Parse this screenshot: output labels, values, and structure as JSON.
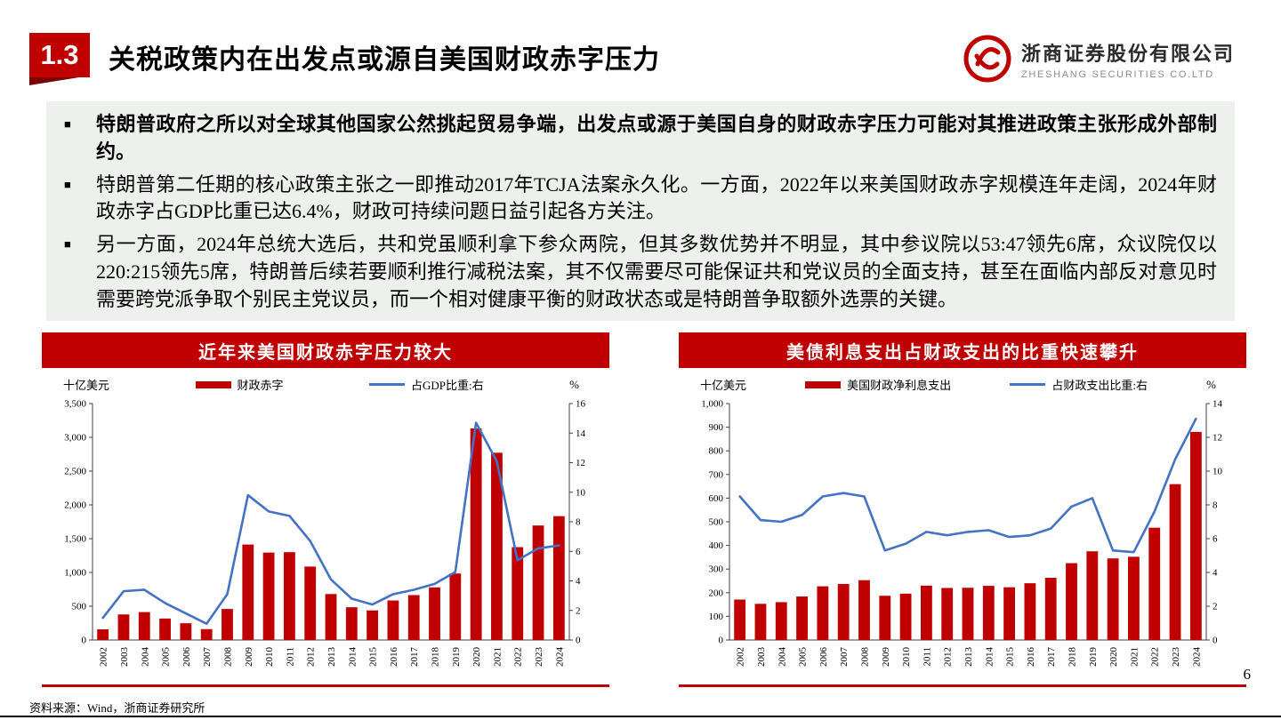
{
  "slide": {
    "section_number": "1.3",
    "title": "关税政策内在出发点或源自美国财政赤字压力",
    "bullet_marker": "■",
    "source_note": "资料来源：Wind，浙商证券研究所",
    "page_number": "6"
  },
  "logo": {
    "company_cn": "浙商证券股份有限公司",
    "company_en": "ZHESHANG SECURITIES CO.LTD"
  },
  "bullets": [
    {
      "text": "特朗普政府之所以对全球其他国家公然挑起贸易争端，出发点或源于美国自身的财政赤字压力可能对其推进政策主张形成外部制约。"
    },
    {
      "text": "特朗普第二任期的核心政策主张之一即推动2017年TCJA法案永久化。一方面，2022年以来美国财政赤字规模连年走阔，2024年财政赤字占GDP比重已达6.4%，财政可持续问题日益引起各方关注。"
    },
    {
      "text": "另一方面，2024年总统大选后，共和党虽顺利拿下参众两院，但其多数优势并不明显，其中参议院以53:47领先6席，众议院仅以220:215领先5席，特朗普后续若要顺利推行减税法案，其不仅需要尽可能保证共和党议员的全面支持，甚至在面临内部反对意见时需要跨党派争取个别民主党议员，而一个相对健康平衡的财政状态或是特朗普争取额外选票的关键。"
    }
  ],
  "chart_data": [
    {
      "type": "bar",
      "subtype": "bar+line-dual-axis",
      "title": "近年来美国财政赤字压力较大",
      "unit_left": "十亿美元",
      "unit_right": "%",
      "grid": false,
      "legend_position": "top",
      "categories": [
        "2002",
        "2003",
        "2004",
        "2005",
        "2006",
        "2007",
        "2008",
        "2009",
        "2010",
        "2011",
        "2012",
        "2013",
        "2014",
        "2015",
        "2016",
        "2017",
        "2018",
        "2019",
        "2020",
        "2021",
        "2022",
        "2023",
        "2024"
      ],
      "bar_series": {
        "name": "财政赤字",
        "color": "#c00000",
        "axis": "left",
        "values": [
          158,
          378,
          413,
          318,
          248,
          161,
          459,
          1413,
          1294,
          1300,
          1087,
          680,
          485,
          438,
          585,
          665,
          779,
          984,
          3132,
          2772,
          1375,
          1695,
          1833
        ]
      },
      "line_series": {
        "name": "占GDP比重:右",
        "color": "#4472c4",
        "axis": "right",
        "values": [
          1.5,
          3.3,
          3.4,
          2.5,
          1.8,
          1.1,
          3.1,
          9.8,
          8.7,
          8.4,
          6.7,
          4.1,
          2.8,
          2.4,
          3.1,
          3.4,
          3.8,
          4.6,
          14.7,
          12.1,
          5.4,
          6.2,
          6.4
        ]
      },
      "left_axis": {
        "min": 0,
        "max": 3500,
        "step": 500
      },
      "right_axis": {
        "min": 0,
        "max": 16,
        "step": 2
      }
    },
    {
      "type": "bar",
      "subtype": "bar+line-dual-axis",
      "title": "美债利息支出占财政支出的比重快速攀升",
      "unit_left": "十亿美元",
      "unit_right": "%",
      "grid": false,
      "legend_position": "top",
      "categories": [
        "2002",
        "2003",
        "2004",
        "2005",
        "2006",
        "2007",
        "2008",
        "2009",
        "2010",
        "2011",
        "2012",
        "2013",
        "2014",
        "2015",
        "2016",
        "2017",
        "2018",
        "2019",
        "2020",
        "2021",
        "2022",
        "2023",
        "2024"
      ],
      "bar_series": {
        "name": "美国财政净利息支出",
        "color": "#c00000",
        "axis": "left",
        "values": [
          171,
          153,
          160,
          184,
          227,
          237,
          253,
          187,
          196,
          230,
          220,
          221,
          229,
          223,
          240,
          263,
          325,
          375,
          345,
          352,
          475,
          659,
          880
        ]
      },
      "line_series": {
        "name": "占财政支出比重:右",
        "color": "#4472c4",
        "axis": "right",
        "values": [
          8.5,
          7.1,
          7.0,
          7.4,
          8.5,
          8.7,
          8.5,
          5.3,
          5.7,
          6.4,
          6.2,
          6.4,
          6.5,
          6.1,
          6.2,
          6.6,
          7.9,
          8.4,
          5.3,
          5.2,
          7.6,
          10.7,
          13.1
        ]
      },
      "left_axis": {
        "min": 0,
        "max": 1000,
        "step": 100
      },
      "right_axis": {
        "min": 0,
        "max": 14,
        "step": 2
      }
    }
  ]
}
